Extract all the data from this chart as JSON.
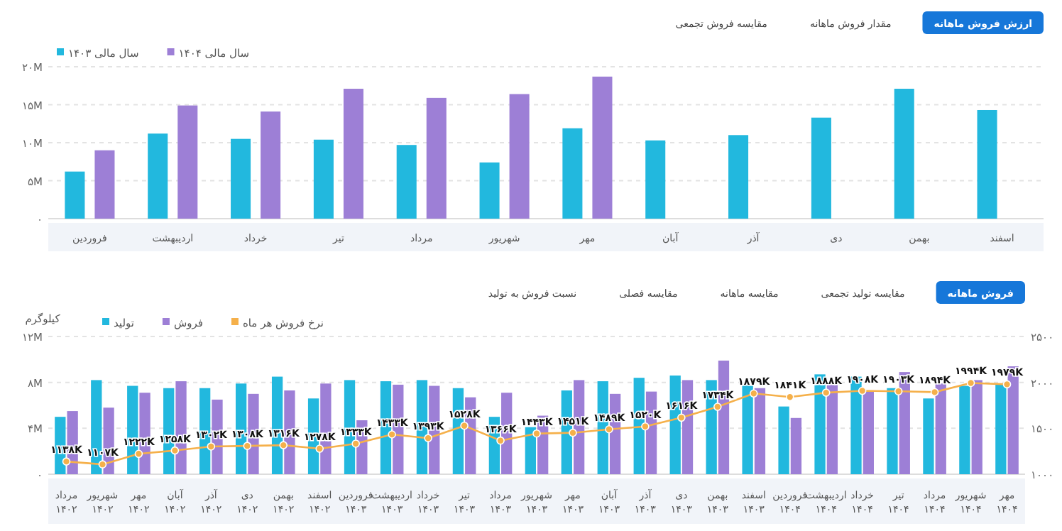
{
  "chart_data": [
    {
      "type": "bar",
      "annotations": [
        "ارزش فروش ماهانه",
        "مقدار فروش ماهانه",
        "مقایسه فروش تجمعی"
      ],
      "categories": [
        "فروردین",
        "اردیبهشت",
        "خرداد",
        "تیر",
        "مرداد",
        "شهریور",
        "مهر",
        "آبان",
        "آذر",
        "دی",
        "بهمن",
        "اسفند"
      ],
      "series": [
        {
          "name": "سال مالی ۱۴۰۳",
          "color": "#22b8de",
          "values": [
            6.2,
            11.2,
            10.5,
            10.4,
            9.7,
            7.4,
            11.9,
            10.3,
            11.0,
            13.3,
            17.1,
            14.3
          ]
        },
        {
          "name": "سال مالی ۱۴۰۴",
          "color": "#9d7fd6",
          "values": [
            9.0,
            14.9,
            14.1,
            17.1,
            15.9,
            16.4,
            18.7,
            null,
            null,
            null,
            null,
            null
          ]
        }
      ],
      "ylim": [
        0,
        20
      ],
      "yticks": [
        {
          "value": 0,
          "label": "۰"
        },
        {
          "value": 5,
          "label": "۵M"
        },
        {
          "value": 10,
          "label": "۱۰M"
        },
        {
          "value": 15,
          "label": "۱۵M"
        },
        {
          "value": 20,
          "label": "۲۰M"
        }
      ],
      "grid": "y",
      "legend": "top left"
    },
    {
      "type": "bar",
      "annotations": [
        "فروش ماهانه",
        "مقایسه تولید تجمعی",
        "مقایسه ماهانه",
        "مقایسه فصلی",
        "نسبت فروش به تولید"
      ],
      "ylabel": "کیلوگرم",
      "categories": [
        "مرداد ۱۴۰۲",
        "شهریور ۱۴۰۲",
        "مهر ۱۴۰۲",
        "آبان ۱۴۰۲",
        "آذر ۱۴۰۲",
        "دی ۱۴۰۲",
        "بهمن ۱۴۰۲",
        "اسفند ۱۴۰۲",
        "فروردین ۱۴۰۳",
        "اردیبهشت ۱۴۰۳",
        "خرداد ۱۴۰۳",
        "تیر ۱۴۰۳",
        "مرداد ۱۴۰۳",
        "شهریور ۱۴۰۳",
        "مهر ۱۴۰۳",
        "آبان ۱۴۰۳",
        "آذر ۱۴۰۳",
        "دی ۱۴۰۳",
        "بهمن ۱۴۰۳",
        "اسفند ۱۴۰۳",
        "فروردین ۱۴۰۴",
        "اردیبهشت ۱۴۰۴",
        "خرداد ۱۴۰۴",
        "تیر ۱۴۰۴",
        "مرداد ۱۴۰۴",
        "شهریور ۱۴۰۴",
        "مهر ۱۴۰۴"
      ],
      "series": [
        {
          "name": "تولید",
          "color": "#22b8de",
          "values": [
            5.0,
            8.2,
            7.7,
            7.5,
            7.5,
            7.9,
            8.5,
            6.6,
            8.2,
            8.1,
            8.2,
            7.5,
            5.0,
            4.1,
            7.3,
            8.1,
            8.4,
            8.6,
            8.2,
            7.8,
            5.9,
            8.7,
            8.5,
            7.5,
            6.6,
            7.7,
            7.8
          ]
        },
        {
          "name": "فروش",
          "color": "#9d7fd6",
          "values": [
            5.5,
            5.8,
            7.1,
            8.1,
            6.5,
            7.0,
            7.3,
            7.9,
            4.7,
            7.8,
            7.7,
            6.7,
            7.1,
            5.1,
            8.2,
            7.0,
            7.2,
            8.2,
            9.9,
            7.5,
            4.9,
            7.8,
            7.3,
            8.9,
            7.9,
            8.2,
            9.4
          ]
        },
        {
          "name": "نرخ فروش هر ماه",
          "type": "line",
          "axis": "y2",
          "color": "#f5b04a",
          "values": [
            1138,
            1107,
            1222,
            1258,
            1302,
            1308,
            1316,
            1278,
            1333,
            1433,
            1393,
            1528,
            1366,
            1443,
            1451,
            1489,
            1520,
            1616,
            1734,
            1879,
            1841,
            1888,
            1908,
            1903,
            1894,
            1994,
            1979
          ],
          "value_labels": [
            "۱۱۳۸K",
            "۱۱۰۷K",
            "۱۲۲۲K",
            "۱۲۵۸K",
            "۱۳۰۲K",
            "۱۳۰۸K",
            "۱۳۱۶K",
            "۱۲۷۸K",
            "۱۳۳۳K",
            "۱۴۳۳K",
            "۱۳۹۳K",
            "۱۵۲۸K",
            "۱۳۶۶K",
            "۱۴۴۳K",
            "۱۴۵۱K",
            "۱۴۸۹K",
            "۱۵۲۰K",
            "۱۶۱۶K",
            "۱۷۳۴K",
            "۱۸۷۹K",
            "۱۸۴۱K",
            "۱۸۸۸K",
            "۱۹۰۸K",
            "۱۹۰۳K",
            "۱۸۹۴K",
            "۱۹۹۴K",
            "۱۹۷۹K"
          ]
        }
      ],
      "ylim": [
        0,
        12
      ],
      "yticks": [
        {
          "value": 0,
          "label": "۰"
        },
        {
          "value": 4,
          "label": "۴M"
        },
        {
          "value": 8,
          "label": "۸M"
        },
        {
          "value": 12,
          "label": "۱۲M"
        }
      ],
      "y2lim": [
        1000,
        2500
      ],
      "y2ticks": [
        {
          "value": 1000,
          "label": "۱۰۰۰"
        },
        {
          "value": 1500,
          "label": "۱۵۰۰"
        },
        {
          "value": 2000,
          "label": "۲۰۰۰"
        },
        {
          "value": 2500,
          "label": "۲۵۰۰"
        }
      ],
      "grid": "y",
      "legend": "top left",
      "marker": "circle"
    }
  ]
}
